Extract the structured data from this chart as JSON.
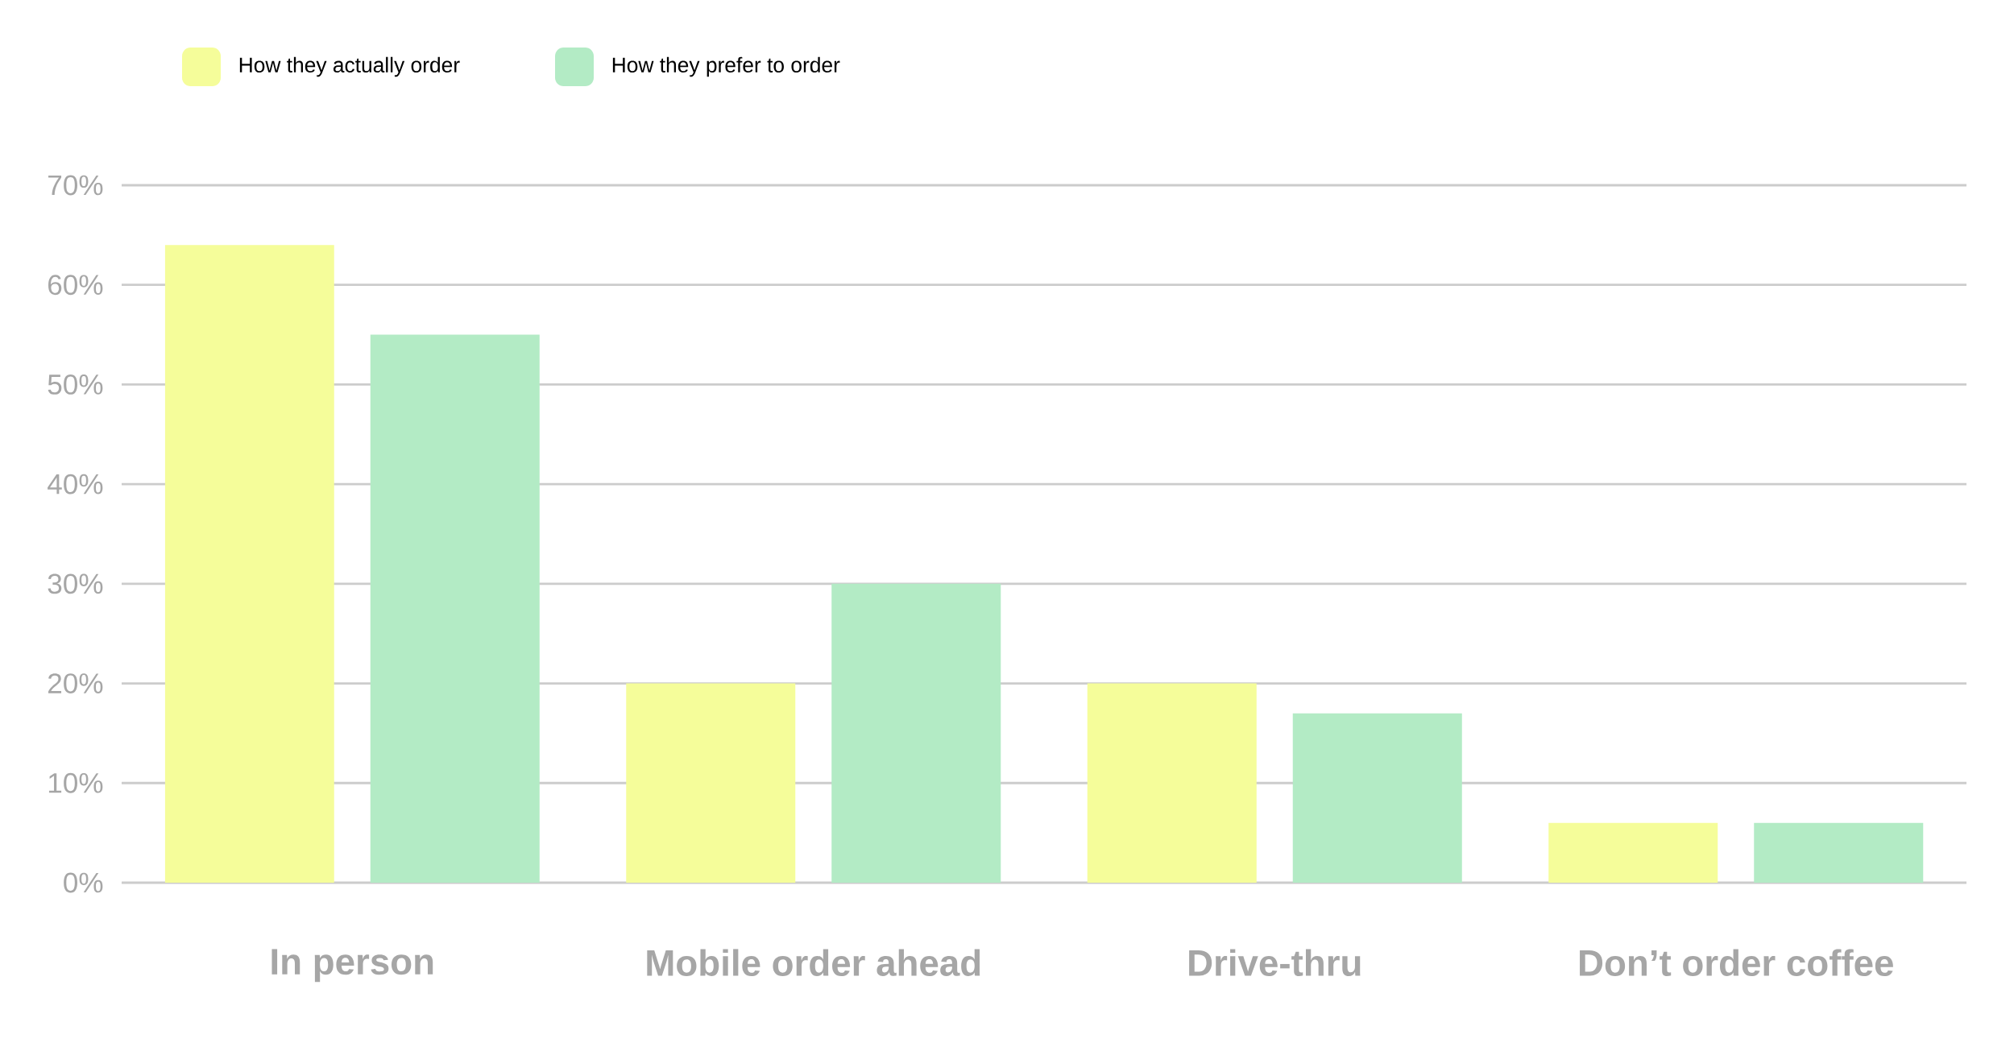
{
  "chart_data": {
    "type": "bar",
    "categories": [
      "In person",
      "Mobile order ahead",
      "Drive-thru",
      "Don’t order coffee"
    ],
    "series": [
      {
        "name": "How they actually order",
        "color": "#f5fd9a",
        "values": [
          64,
          20,
          20,
          6
        ]
      },
      {
        "name": "How they prefer to order",
        "color": "#b3ebc5",
        "values": [
          55,
          30,
          17,
          6
        ]
      }
    ],
    "ylim": [
      0,
      70
    ],
    "yticks": [
      {
        "value": 0,
        "label": "0%"
      },
      {
        "value": 10,
        "label": "10%"
      },
      {
        "value": 20,
        "label": "20%"
      },
      {
        "value": 30,
        "label": "30%"
      },
      {
        "value": 40,
        "label": "40%"
      },
      {
        "value": 50,
        "label": "50%"
      },
      {
        "value": 60,
        "label": "60%"
      },
      {
        "value": 70,
        "label": "70%"
      }
    ],
    "grid": "y",
    "legend": "top left"
  }
}
